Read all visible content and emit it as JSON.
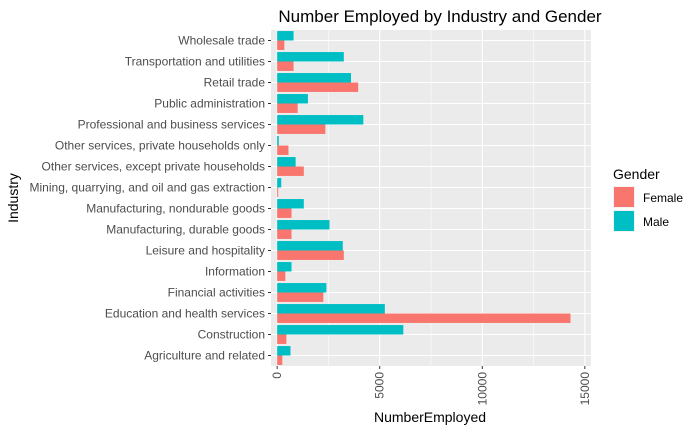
{
  "chart_data": {
    "type": "bar",
    "orientation": "horizontal",
    "title": "Number Employed by Industry and Gender",
    "xlabel": "NumberEmployed",
    "ylabel": "Industry",
    "xlim": [
      -300,
      15300
    ],
    "xticks": [
      0,
      5000,
      10000,
      15000
    ],
    "x_tick_labels": [
      "0",
      "5000",
      "10000",
      "15000"
    ],
    "grid": true,
    "legend": {
      "title": "Gender",
      "position": "right"
    },
    "categories": [
      "Agriculture and related",
      "Construction",
      "Education and health services",
      "Financial activities",
      "Information",
      "Leisure and hospitality",
      "Manufacturing, durable goods",
      "Manufacturing, nondurable goods",
      "Mining, quarrying, and oil and gas extraction",
      "Other services, except private households",
      "Other services, private households only",
      "Professional and business services",
      "Public administration",
      "Retail trade",
      "Transportation and utilities",
      "Wholesale trade"
    ],
    "series": [
      {
        "name": "Female",
        "color": "#F8766D",
        "values": [
          250,
          450,
          14300,
          2250,
          400,
          3250,
          700,
          700,
          50,
          1300,
          550,
          2350,
          1000,
          3950,
          800,
          350
        ]
      },
      {
        "name": "Male",
        "color": "#00BFC4",
        "values": [
          650,
          6150,
          5250,
          2400,
          700,
          3200,
          2550,
          1300,
          200,
          900,
          80,
          4200,
          1500,
          3600,
          3250,
          800
        ]
      }
    ]
  }
}
